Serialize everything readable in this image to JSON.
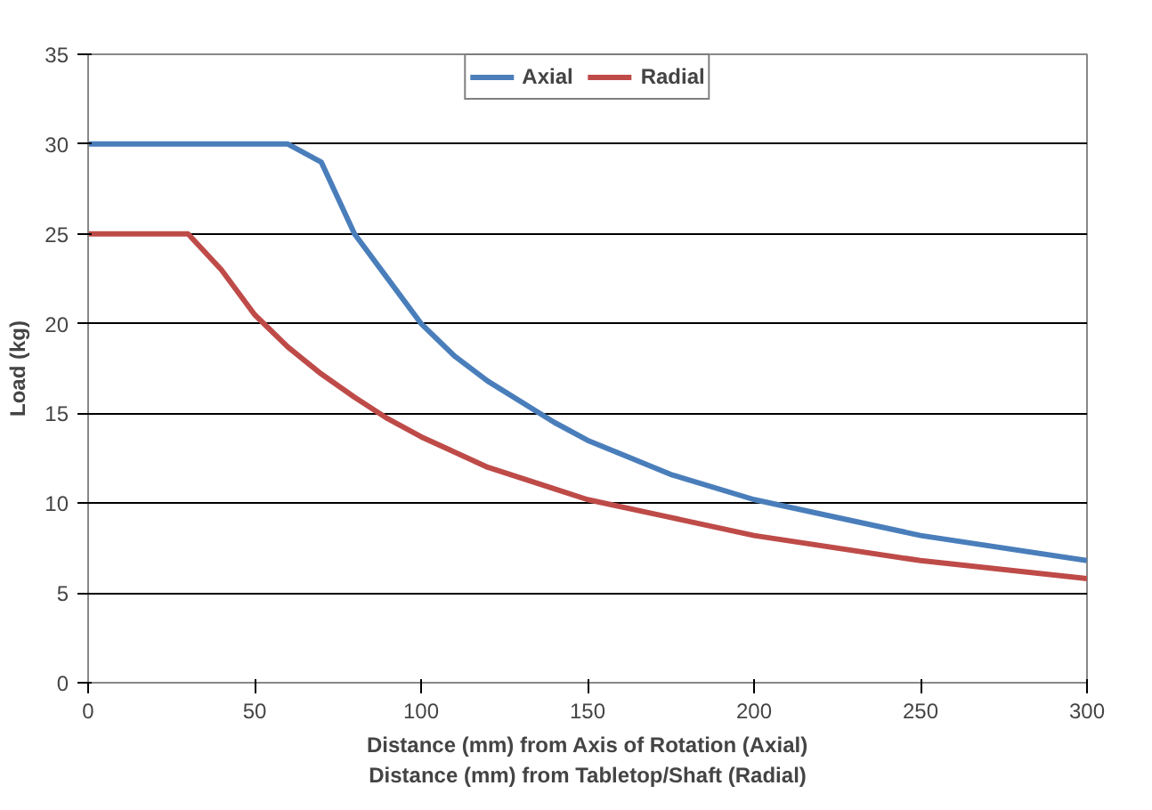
{
  "chart_data": {
    "type": "line",
    "xlabel": "Distance (mm) from Axis of Rotation (Axial)\nDistance (mm) from Tabletop/Shaft (Radial)",
    "ylabel": "Load (kg)",
    "xlim": [
      0,
      300
    ],
    "xticks": [
      0,
      50,
      100,
      150,
      200,
      250,
      300
    ],
    "ylim": [
      0,
      35
    ],
    "yticks": [
      0,
      5,
      10,
      15,
      20,
      25,
      30,
      35
    ],
    "grid": "y",
    "legend": "top",
    "line_style": "solid",
    "series": [
      {
        "name": "Axial",
        "color": "#4a7ebb",
        "x": [
          0,
          60,
          70,
          80,
          90,
          100,
          110,
          120,
          140,
          150,
          175,
          200,
          250,
          300
        ],
        "values": [
          30,
          30,
          29,
          25,
          22.5,
          20,
          18.2,
          16.8,
          14.5,
          13.5,
          11.6,
          10.2,
          8.2,
          6.8
        ]
      },
      {
        "name": "Radial",
        "color": "#be4b48",
        "x": [
          0,
          30,
          40,
          50,
          60,
          70,
          80,
          90,
          100,
          120,
          140,
          150,
          175,
          200,
          250,
          300
        ],
        "values": [
          25,
          25,
          23,
          20.5,
          18.7,
          17.2,
          15.9,
          14.7,
          13.7,
          12.0,
          10.8,
          10.2,
          9.2,
          8.2,
          6.8,
          5.8
        ]
      }
    ]
  }
}
